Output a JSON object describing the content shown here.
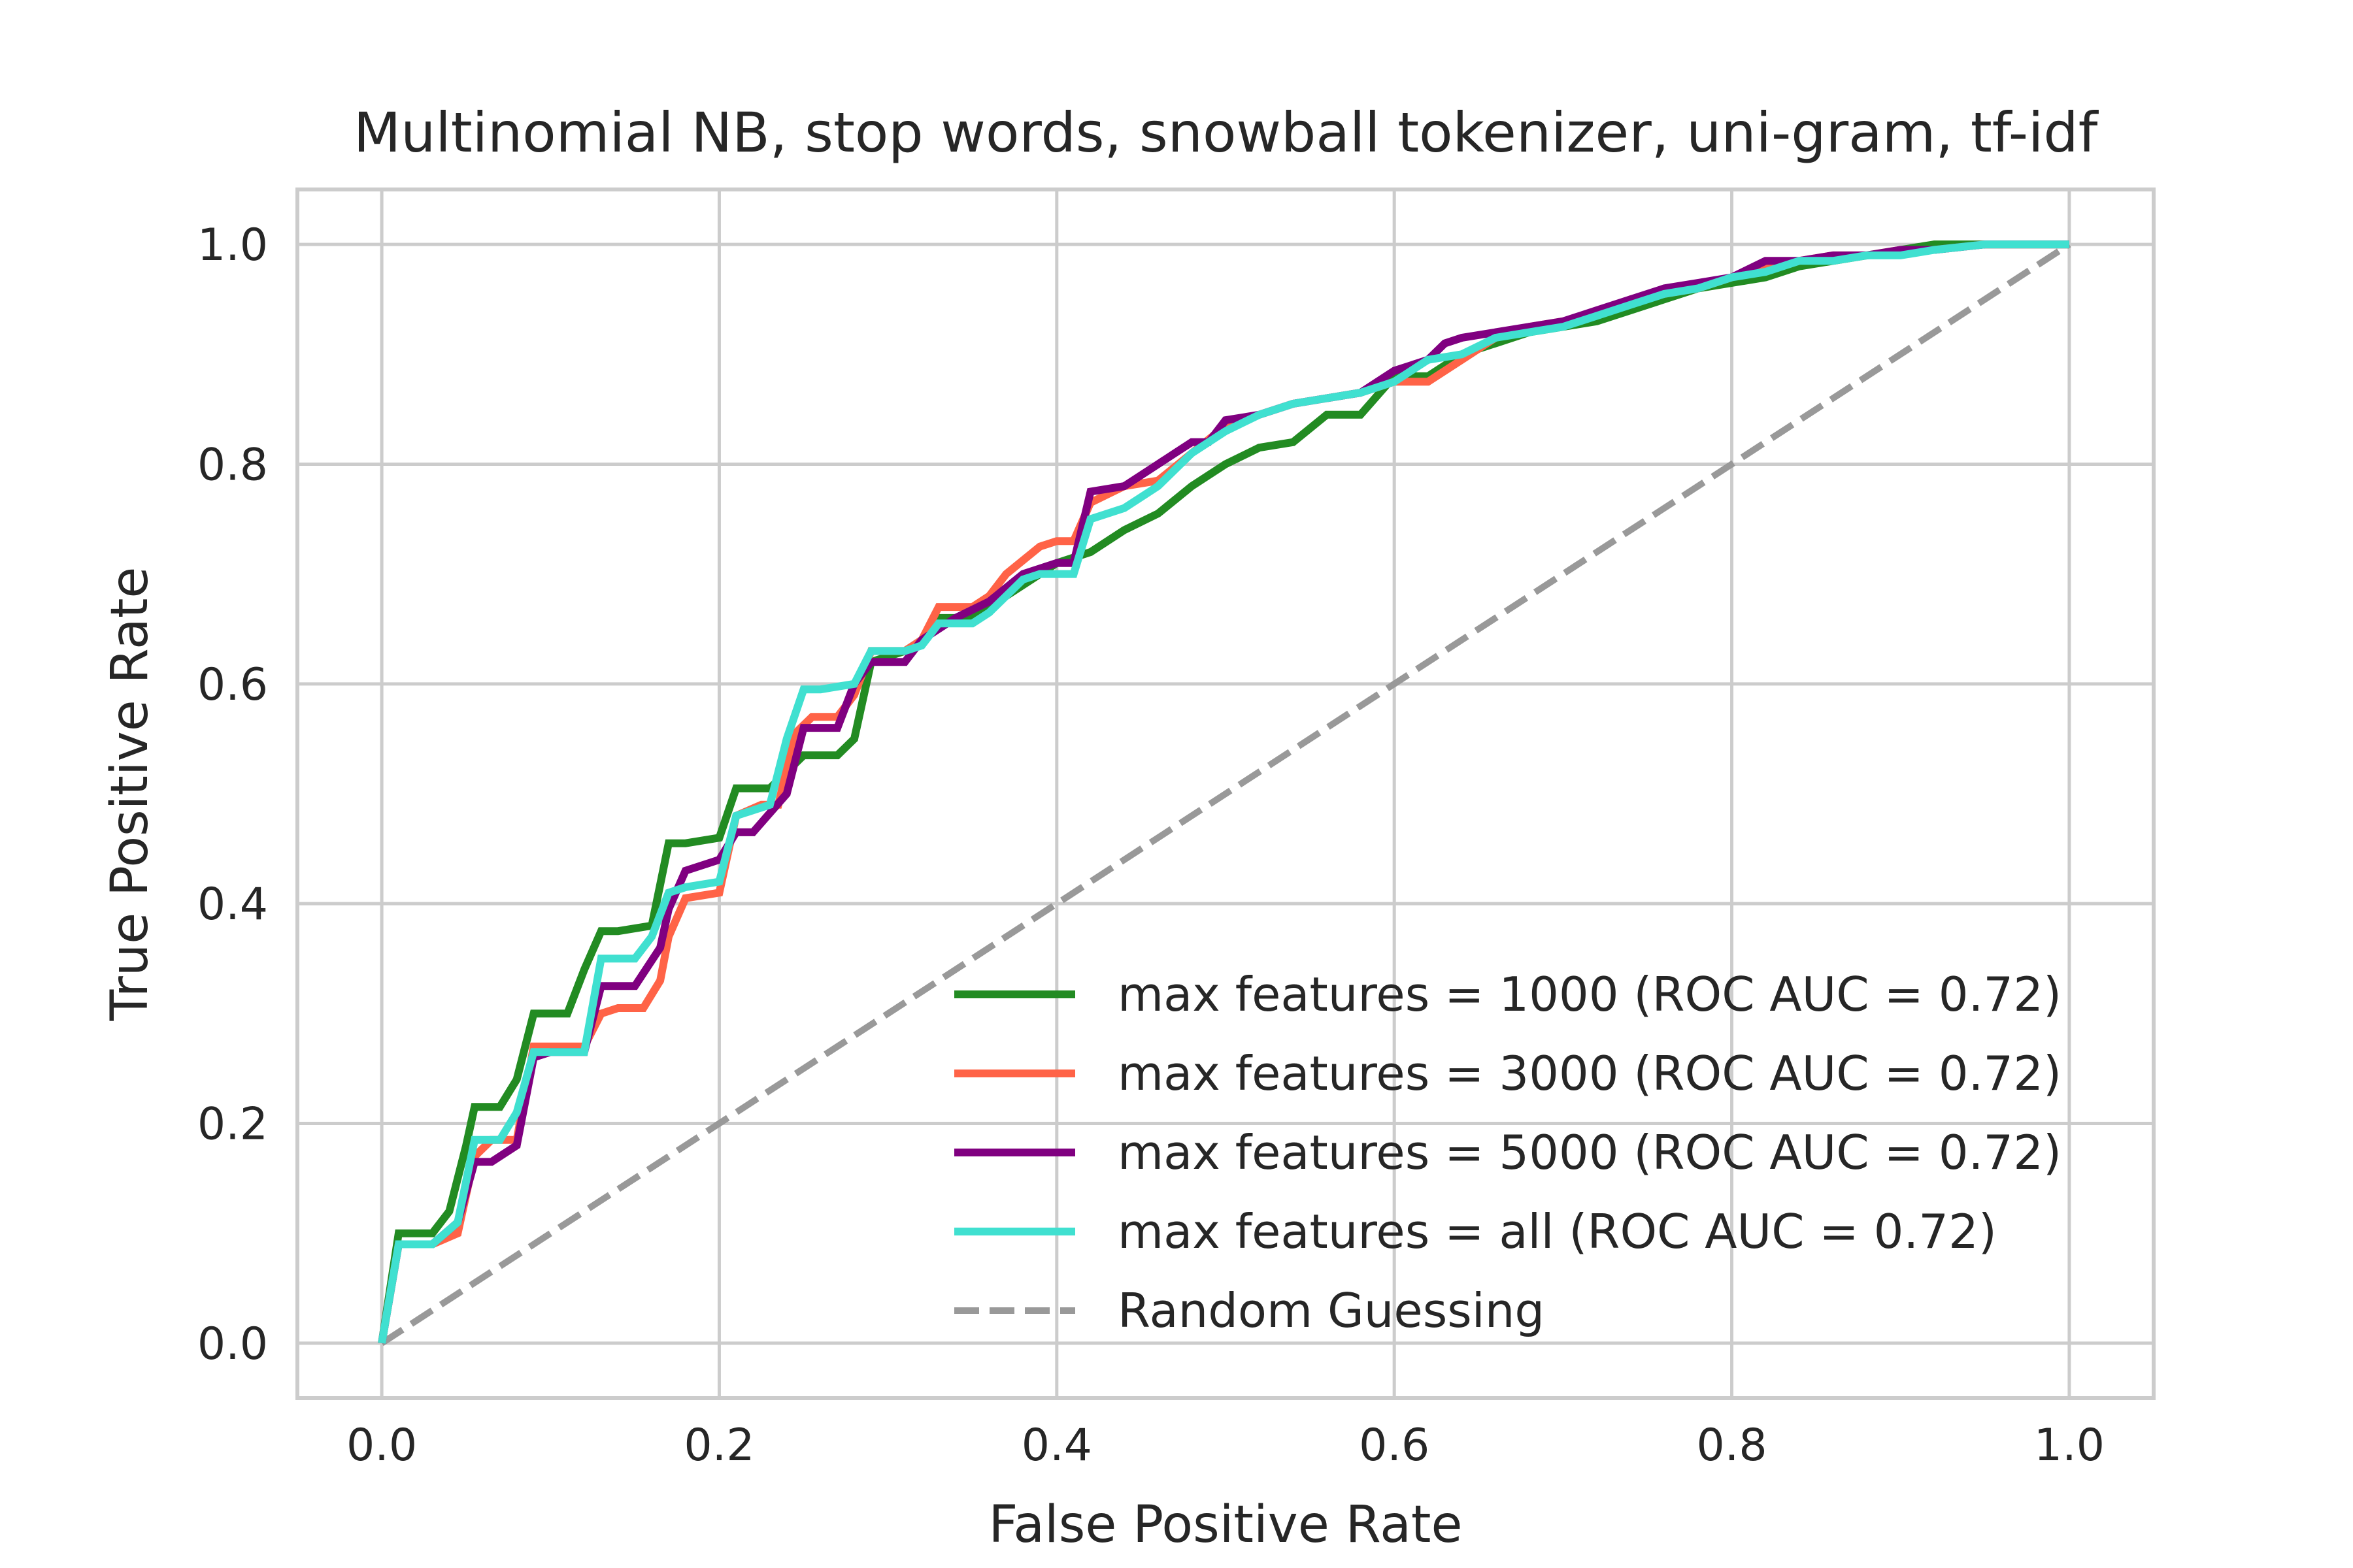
{
  "chart_data": {
    "type": "line",
    "title": "Multinomial NB, stop words, snowball tokenizer, uni-gram, tf-idf",
    "xlabel": "False Positive Rate",
    "ylabel": "True Positive Rate",
    "xlim": [
      -0.05,
      1.05
    ],
    "ylim": [
      -0.05,
      1.05
    ],
    "xticks": [
      "0.0",
      "0.2",
      "0.4",
      "0.6",
      "0.8",
      "1.0"
    ],
    "yticks": [
      "0.0",
      "0.2",
      "0.4",
      "0.6",
      "0.8",
      "1.0"
    ],
    "grid": true,
    "legend_position": "bottom-right",
    "series": [
      {
        "name": "max features = 1000 (ROC AUC = 0.72)",
        "color": "#228b22",
        "x": [
          0.0,
          0.01,
          0.03,
          0.04,
          0.05,
          0.055,
          0.07,
          0.08,
          0.09,
          0.1,
          0.11,
          0.12,
          0.13,
          0.14,
          0.16,
          0.17,
          0.18,
          0.2,
          0.21,
          0.23,
          0.24,
          0.25,
          0.27,
          0.28,
          0.29,
          0.31,
          0.32,
          0.33,
          0.35,
          0.36,
          0.38,
          0.4,
          0.42,
          0.44,
          0.46,
          0.48,
          0.5,
          0.52,
          0.54,
          0.56,
          0.58,
          0.6,
          0.62,
          0.64,
          0.66,
          0.68,
          0.7,
          0.72,
          0.74,
          0.76,
          0.78,
          0.8,
          0.82,
          0.84,
          0.86,
          0.88,
          0.9,
          0.92,
          0.95,
          1.0
        ],
        "y": [
          0.0,
          0.1,
          0.1,
          0.12,
          0.18,
          0.215,
          0.215,
          0.24,
          0.3,
          0.3,
          0.3,
          0.34,
          0.375,
          0.375,
          0.38,
          0.455,
          0.455,
          0.46,
          0.505,
          0.505,
          0.52,
          0.535,
          0.535,
          0.55,
          0.62,
          0.63,
          0.64,
          0.66,
          0.66,
          0.67,
          0.69,
          0.71,
          0.72,
          0.74,
          0.755,
          0.78,
          0.8,
          0.815,
          0.82,
          0.845,
          0.845,
          0.88,
          0.88,
          0.9,
          0.91,
          0.92,
          0.925,
          0.93,
          0.94,
          0.95,
          0.96,
          0.965,
          0.97,
          0.98,
          0.985,
          0.99,
          0.995,
          1.0,
          1.0,
          1.0
        ]
      },
      {
        "name": "max features = 3000 (ROC AUC = 0.72)",
        "color": "#ff6347",
        "x": [
          0.0,
          0.01,
          0.03,
          0.045,
          0.055,
          0.065,
          0.08,
          0.09,
          0.1,
          0.12,
          0.13,
          0.14,
          0.155,
          0.165,
          0.17,
          0.18,
          0.2,
          0.21,
          0.225,
          0.235,
          0.245,
          0.255,
          0.27,
          0.28,
          0.29,
          0.31,
          0.32,
          0.33,
          0.35,
          0.36,
          0.37,
          0.39,
          0.4,
          0.41,
          0.42,
          0.44,
          0.46,
          0.48,
          0.5,
          0.52,
          0.54,
          0.56,
          0.58,
          0.6,
          0.62,
          0.64,
          0.66,
          0.68,
          0.7,
          0.72,
          0.74,
          0.76,
          0.78,
          0.8,
          0.82,
          0.84,
          0.86,
          0.88,
          0.9,
          0.92,
          0.95,
          1.0
        ],
        "y": [
          0.0,
          0.09,
          0.09,
          0.1,
          0.17,
          0.185,
          0.185,
          0.27,
          0.27,
          0.27,
          0.3,
          0.305,
          0.305,
          0.33,
          0.37,
          0.405,
          0.41,
          0.48,
          0.49,
          0.49,
          0.555,
          0.57,
          0.57,
          0.59,
          0.63,
          0.63,
          0.64,
          0.67,
          0.67,
          0.68,
          0.7,
          0.725,
          0.73,
          0.73,
          0.765,
          0.78,
          0.785,
          0.81,
          0.835,
          0.845,
          0.855,
          0.86,
          0.865,
          0.875,
          0.875,
          0.895,
          0.915,
          0.925,
          0.93,
          0.935,
          0.95,
          0.955,
          0.96,
          0.97,
          0.98,
          0.985,
          0.99,
          0.99,
          0.995,
          0.995,
          1.0,
          1.0
        ]
      },
      {
        "name": "max features = 5000 (ROC AUC = 0.72)",
        "color": "#800080",
        "x": [
          0.0,
          0.01,
          0.03,
          0.045,
          0.055,
          0.065,
          0.08,
          0.09,
          0.1,
          0.12,
          0.13,
          0.15,
          0.165,
          0.17,
          0.18,
          0.2,
          0.21,
          0.22,
          0.24,
          0.25,
          0.27,
          0.28,
          0.29,
          0.31,
          0.32,
          0.34,
          0.36,
          0.38,
          0.4,
          0.41,
          0.42,
          0.44,
          0.46,
          0.47,
          0.48,
          0.49,
          0.5,
          0.52,
          0.54,
          0.56,
          0.58,
          0.6,
          0.62,
          0.63,
          0.64,
          0.66,
          0.68,
          0.7,
          0.72,
          0.74,
          0.76,
          0.78,
          0.8,
          0.82,
          0.84,
          0.86,
          0.88,
          0.9,
          0.92,
          0.95,
          1.0
        ],
        "y": [
          0.0,
          0.09,
          0.09,
          0.11,
          0.165,
          0.165,
          0.18,
          0.26,
          0.265,
          0.265,
          0.325,
          0.325,
          0.36,
          0.395,
          0.43,
          0.44,
          0.465,
          0.465,
          0.5,
          0.56,
          0.56,
          0.6,
          0.62,
          0.62,
          0.64,
          0.66,
          0.675,
          0.7,
          0.71,
          0.71,
          0.775,
          0.78,
          0.8,
          0.81,
          0.82,
          0.82,
          0.84,
          0.845,
          0.855,
          0.86,
          0.865,
          0.885,
          0.895,
          0.91,
          0.915,
          0.92,
          0.925,
          0.93,
          0.94,
          0.95,
          0.96,
          0.965,
          0.97,
          0.985,
          0.985,
          0.99,
          0.99,
          0.995,
          0.995,
          1.0,
          1.0
        ]
      },
      {
        "name": "max features = all (ROC AUC = 0.72)",
        "color": "#40e0d0",
        "x": [
          0.0,
          0.01,
          0.03,
          0.045,
          0.055,
          0.07,
          0.08,
          0.09,
          0.12,
          0.13,
          0.15,
          0.16,
          0.17,
          0.18,
          0.2,
          0.21,
          0.23,
          0.24,
          0.25,
          0.26,
          0.28,
          0.29,
          0.31,
          0.32,
          0.33,
          0.35,
          0.36,
          0.38,
          0.39,
          0.41,
          0.42,
          0.44,
          0.46,
          0.48,
          0.5,
          0.52,
          0.54,
          0.56,
          0.58,
          0.6,
          0.62,
          0.64,
          0.66,
          0.68,
          0.7,
          0.72,
          0.74,
          0.76,
          0.78,
          0.8,
          0.82,
          0.84,
          0.86,
          0.88,
          0.9,
          0.92,
          0.95,
          1.0
        ],
        "y": [
          0.0,
          0.09,
          0.09,
          0.11,
          0.185,
          0.185,
          0.21,
          0.265,
          0.265,
          0.35,
          0.35,
          0.37,
          0.41,
          0.415,
          0.42,
          0.48,
          0.49,
          0.55,
          0.595,
          0.595,
          0.6,
          0.63,
          0.63,
          0.635,
          0.655,
          0.655,
          0.665,
          0.695,
          0.7,
          0.7,
          0.75,
          0.76,
          0.78,
          0.81,
          0.83,
          0.845,
          0.855,
          0.86,
          0.865,
          0.875,
          0.895,
          0.9,
          0.915,
          0.92,
          0.925,
          0.935,
          0.945,
          0.955,
          0.96,
          0.97,
          0.975,
          0.985,
          0.985,
          0.99,
          0.99,
          0.995,
          1.0,
          1.0
        ]
      }
    ],
    "reference_line": {
      "name": "Random Guessing",
      "color": "#999999",
      "style": "dashed",
      "x": [
        0.0,
        1.0
      ],
      "y": [
        0.0,
        1.0
      ]
    }
  }
}
